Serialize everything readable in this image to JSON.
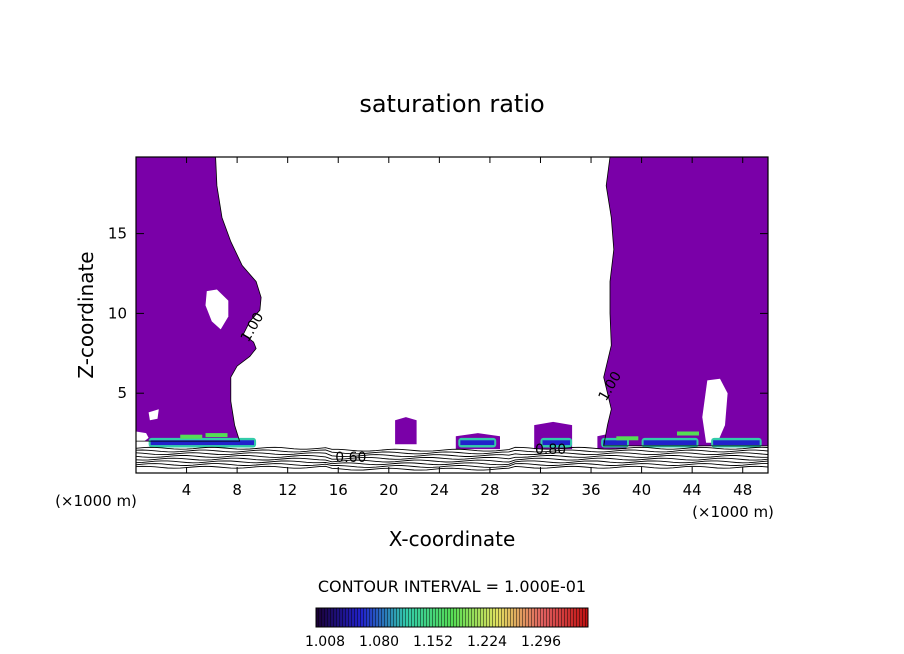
{
  "chart_data": {
    "type": "heatmap",
    "title": "saturation ratio",
    "xlabel": "X-coordinate",
    "ylabel": "Z-coordinate",
    "x_unit_label_left": "(×1000 m)",
    "x_unit_label_right": "(×1000 m)",
    "xlim": [
      0,
      50
    ],
    "ylim": [
      0,
      19.8
    ],
    "xticks": [
      4,
      8,
      12,
      16,
      20,
      24,
      28,
      32,
      36,
      40,
      44,
      48
    ],
    "yticks": [
      5,
      10,
      15
    ],
    "contour_interval_text": "CONTOUR INTERVAL = 1.000E-01",
    "contour_labels": [
      {
        "text": "1.00",
        "x": 9.5,
        "y": 9.0
      },
      {
        "text": "1.00",
        "x": 37.8,
        "y": 5.3
      },
      {
        "text": "0.60",
        "x": 17.0,
        "y": 0.7
      },
      {
        "text": "0.80",
        "x": 32.8,
        "y": 1.2
      }
    ],
    "colorbar": {
      "tick_labels": [
        "1.008",
        "1.080",
        "1.152",
        "1.224",
        "1.296"
      ],
      "colors": [
        "#1a0033",
        "#2222cc",
        "#33ccaa",
        "#55dd55",
        "#e0e060",
        "#e06060",
        "#c01010"
      ]
    },
    "fill_color": "#7a00a8"
  }
}
